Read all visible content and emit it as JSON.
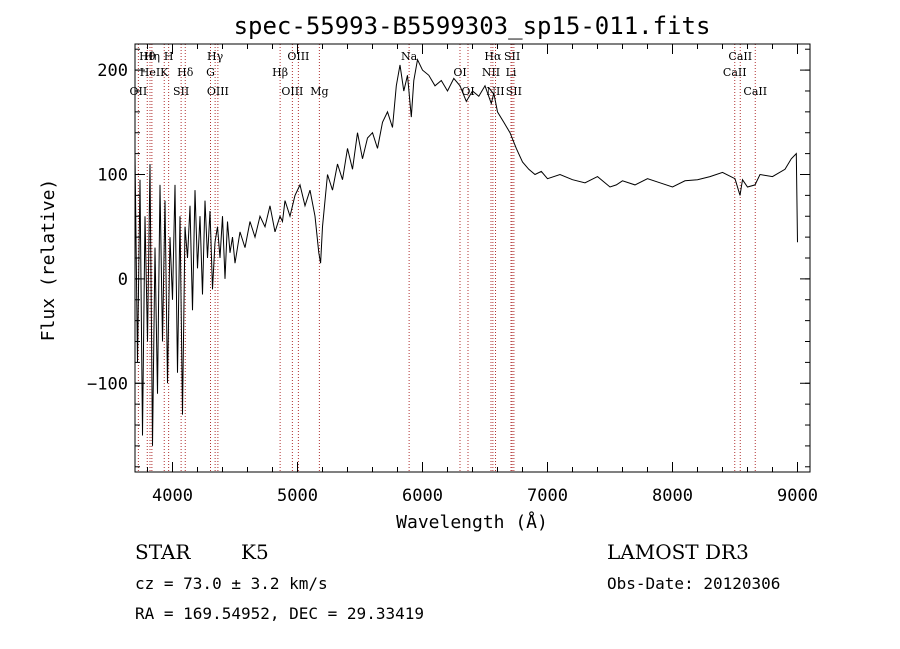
{
  "chart_data": {
    "type": "line",
    "title": "spec-55993-B5599303_sp15-011.fits",
    "xlabel": "Wavelength (Å)",
    "ylabel": "Flux (relative)",
    "xlim": [
      3700,
      9100
    ],
    "ylim": [
      -185,
      225
    ],
    "xticks": [
      4000,
      5000,
      6000,
      7000,
      8000,
      9000
    ],
    "yticks": [
      -100,
      0,
      100,
      200
    ],
    "xtick_labels": [
      "4000",
      "5000",
      "6000",
      "7000",
      "8000",
      "9000"
    ],
    "ytick_labels": [
      "−100",
      "0",
      "100",
      "200"
    ],
    "series": [
      {
        "name": "flux",
        "x": [
          3700,
          3720,
          3740,
          3760,
          3780,
          3800,
          3820,
          3840,
          3860,
          3880,
          3900,
          3920,
          3940,
          3960,
          3980,
          4000,
          4020,
          4040,
          4060,
          4080,
          4100,
          4120,
          4140,
          4160,
          4180,
          4200,
          4220,
          4240,
          4260,
          4280,
          4300,
          4320,
          4340,
          4360,
          4380,
          4400,
          4420,
          4440,
          4460,
          4480,
          4500,
          4540,
          4580,
          4620,
          4660,
          4700,
          4740,
          4780,
          4820,
          4860,
          4880,
          4900,
          4940,
          4980,
          5020,
          5060,
          5100,
          5140,
          5170,
          5185,
          5200,
          5240,
          5280,
          5320,
          5360,
          5400,
          5440,
          5480,
          5520,
          5560,
          5600,
          5640,
          5680,
          5720,
          5760,
          5790,
          5820,
          5850,
          5880,
          5910,
          5930,
          5960,
          6000,
          6050,
          6100,
          6150,
          6200,
          6250,
          6300,
          6350,
          6400,
          6450,
          6500,
          6550,
          6570,
          6600,
          6650,
          6700,
          6750,
          6800,
          6850,
          6900,
          6950,
          7000,
          7100,
          7200,
          7300,
          7400,
          7500,
          7550,
          7600,
          7700,
          7800,
          7900,
          8000,
          8100,
          8200,
          8300,
          8400,
          8500,
          8540,
          8560,
          8600,
          8660,
          8700,
          8800,
          8900,
          8950,
          8990,
          9000
        ],
        "values": [
          120,
          -80,
          95,
          -150,
          60,
          -60,
          110,
          -160,
          30,
          -110,
          90,
          -60,
          75,
          -100,
          40,
          -20,
          90,
          -90,
          60,
          -130,
          50,
          20,
          70,
          -30,
          85,
          10,
          60,
          -15,
          75,
          20,
          65,
          -10,
          35,
          50,
          20,
          60,
          0,
          55,
          25,
          40,
          15,
          45,
          30,
          55,
          40,
          60,
          50,
          70,
          45,
          60,
          55,
          75,
          60,
          80,
          90,
          70,
          85,
          60,
          25,
          15,
          50,
          100,
          85,
          110,
          95,
          125,
          105,
          140,
          115,
          135,
          140,
          125,
          150,
          160,
          145,
          185,
          205,
          180,
          195,
          155,
          190,
          210,
          200,
          195,
          185,
          190,
          180,
          192,
          185,
          170,
          180,
          175,
          185,
          168,
          178,
          160,
          150,
          140,
          125,
          112,
          105,
          100,
          103,
          96,
          100,
          95,
          92,
          98,
          88,
          90,
          94,
          90,
          96,
          92,
          88,
          94,
          95,
          98,
          102,
          96,
          80,
          95,
          88,
          90,
          100,
          98,
          105,
          115,
          120,
          35
        ],
        "color": "#000000"
      }
    ],
    "spectral_lines": [
      {
        "label": "Hθ",
        "wl": 3798
      },
      {
        "label": "HeI",
        "wl": 3820
      },
      {
        "label": "OII",
        "wl": 3727
      },
      {
        "label": "Hη",
        "wl": 3835
      },
      {
        "label": "K",
        "wl": 3934
      },
      {
        "label": "SII",
        "wl": 4069
      },
      {
        "label": "H",
        "wl": 3969
      },
      {
        "label": "Hδ",
        "wl": 4102
      },
      {
        "label": "OIII",
        "wl": 4363
      },
      {
        "label": "Hγ",
        "wl": 4341
      },
      {
        "label": "G",
        "wl": 4304
      },
      {
        "label": "OIII",
        "wl": 4959
      },
      {
        "label": "OIII",
        "wl": 5007
      },
      {
        "label": "Hβ",
        "wl": 4861
      },
      {
        "label": "Mg",
        "wl": 5175
      },
      {
        "label": "Na",
        "wl": 5893
      },
      {
        "label": "OI",
        "wl": 6300
      },
      {
        "label": "OI",
        "wl": 6364
      },
      {
        "label": "Hα",
        "wl": 6563
      },
      {
        "label": "NII",
        "wl": 6548
      },
      {
        "label": "NII",
        "wl": 6584
      },
      {
        "label": "SII",
        "wl": 6717
      },
      {
        "label": "Li",
        "wl": 6708
      },
      {
        "label": "SII",
        "wl": 6731
      },
      {
        "label": "CaII",
        "wl": 8542
      },
      {
        "label": "CaII",
        "wl": 8498
      },
      {
        "label": "CaII",
        "wl": 8662
      }
    ]
  },
  "info": {
    "class": "STAR",
    "subclass": "K5",
    "survey": "LAMOST DR3",
    "cz": "cz = 73.0 ± 3.2 km/s",
    "obs_date": "Obs-Date: 20120306",
    "coords": "RA = 169.54952, DEC =  29.33419"
  },
  "colors": {
    "line": "#000000",
    "marker_lines": "#b03030"
  }
}
